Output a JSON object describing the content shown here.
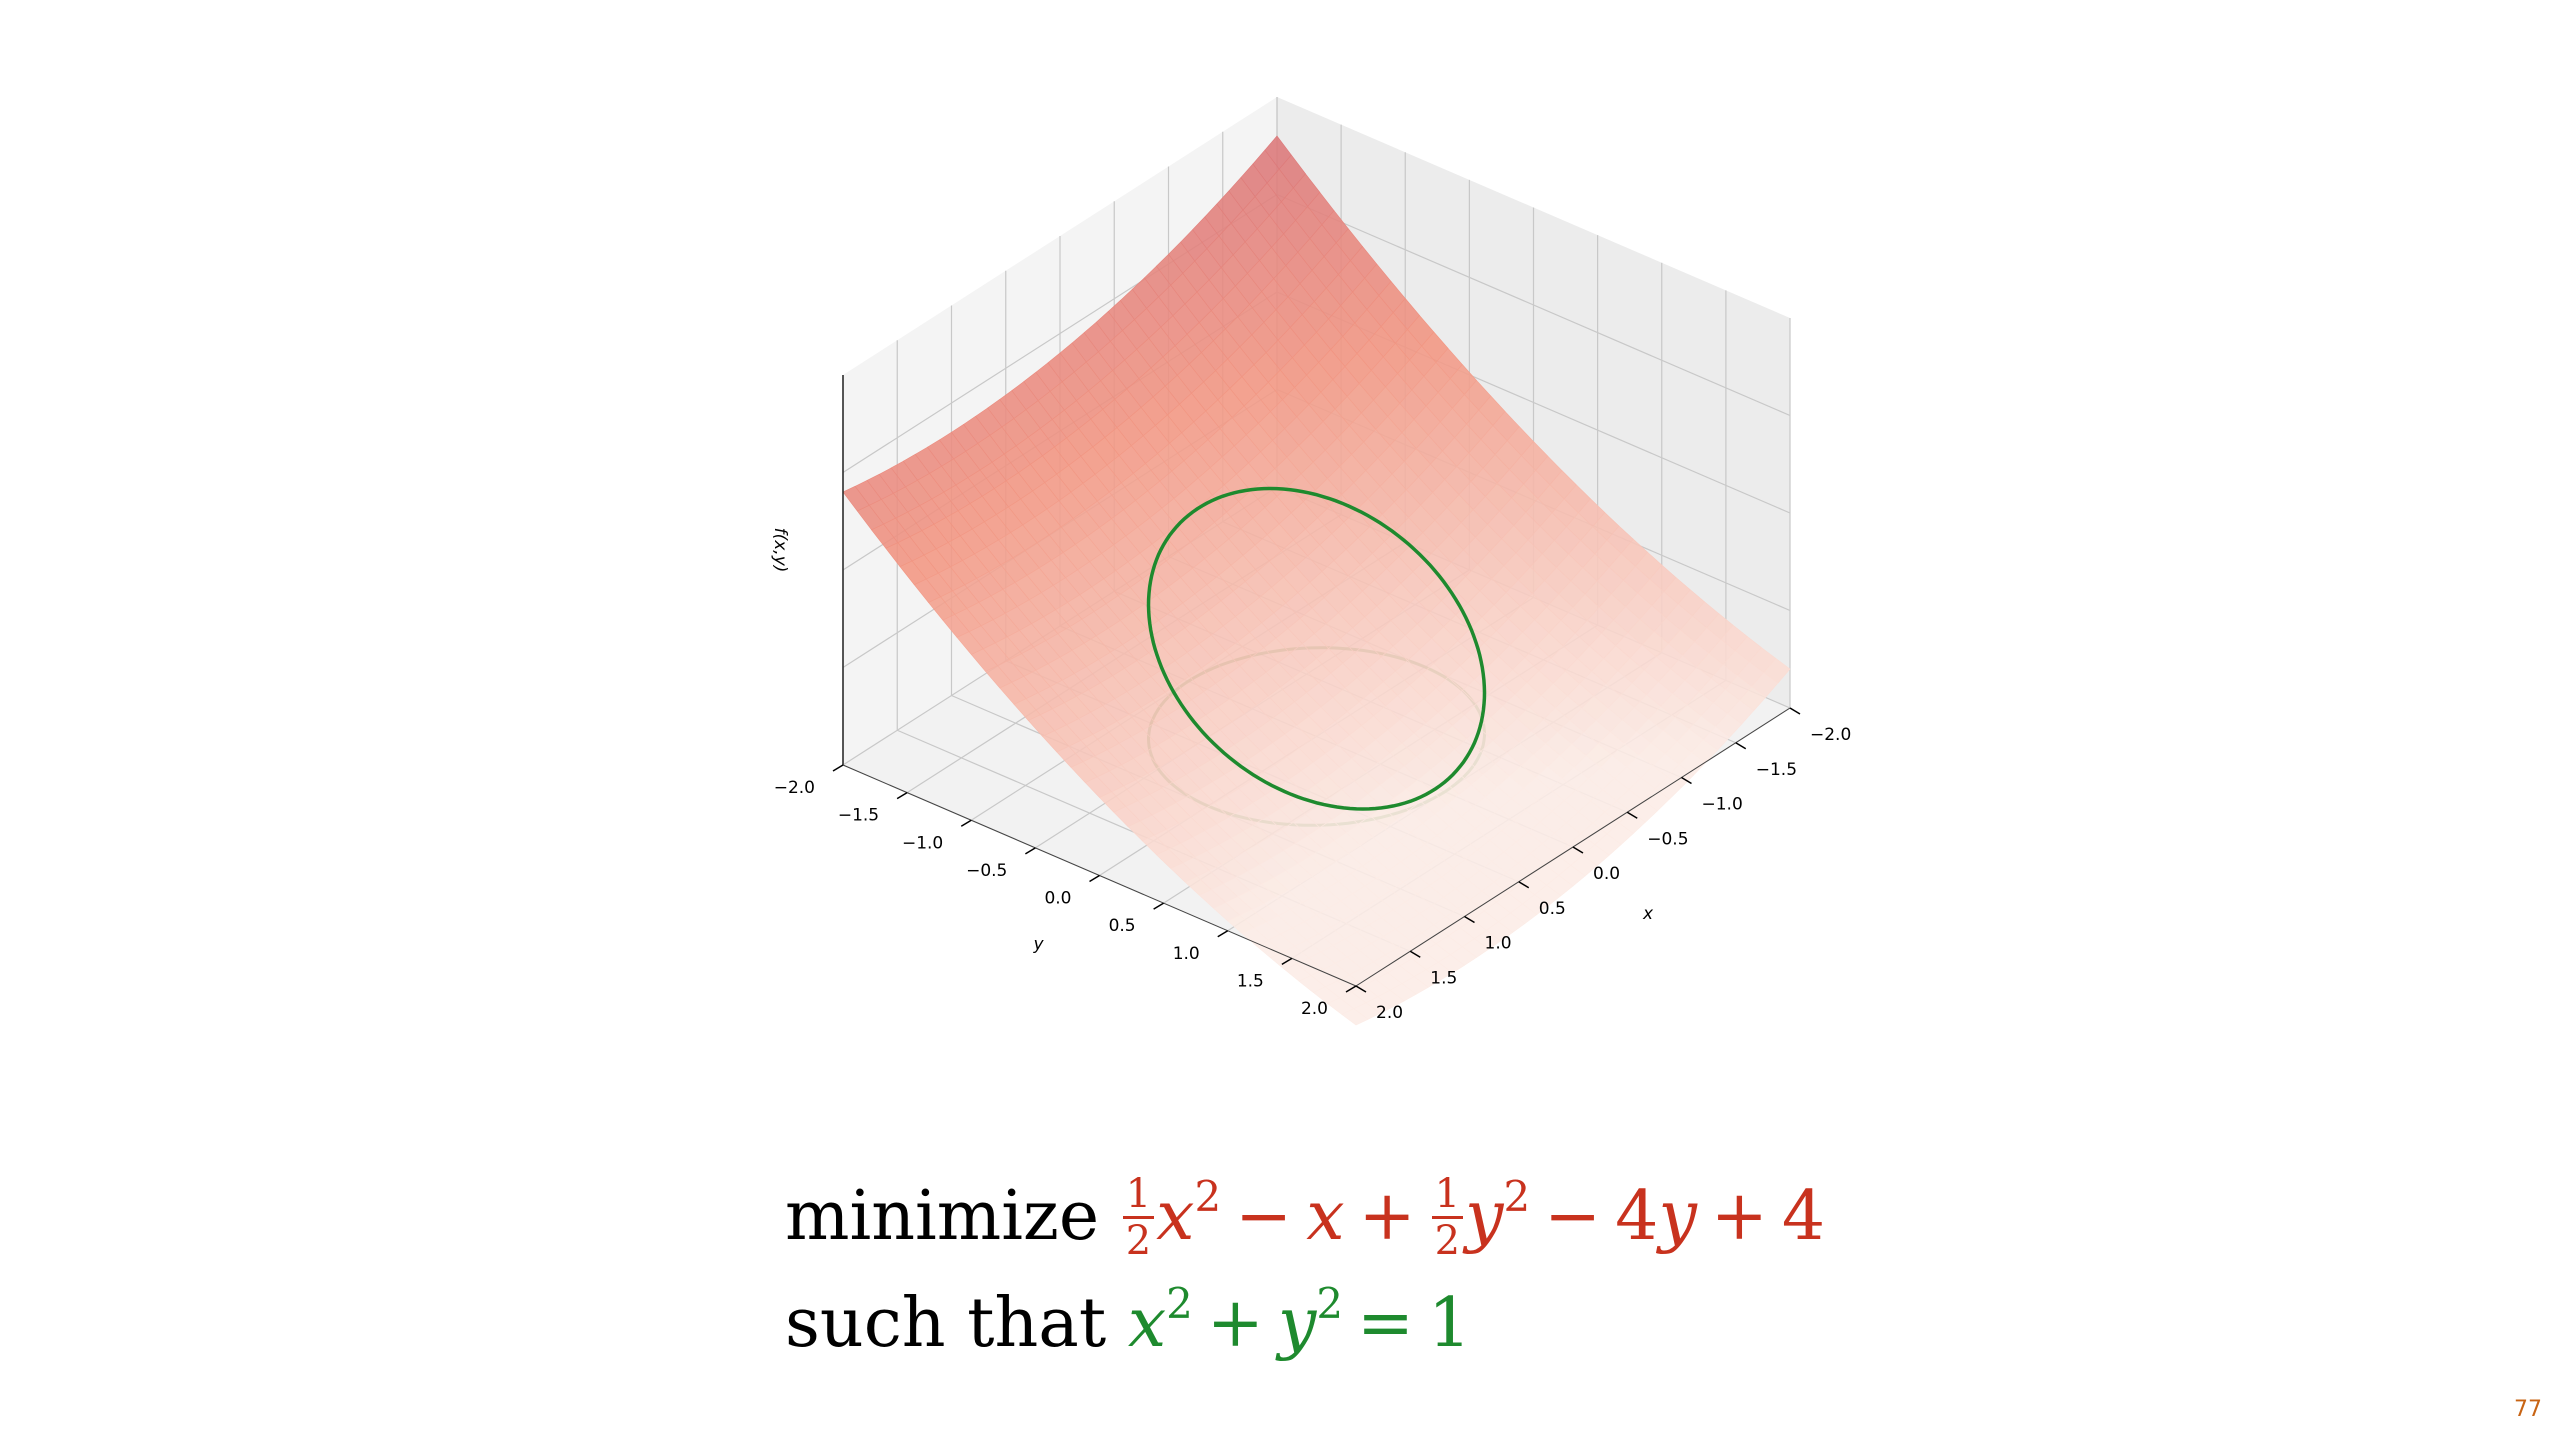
{
  "chart_data": {
    "type": "surface3d",
    "surface": "0.5*x^2 - x + 0.5*y^2 - 4*y + 4",
    "constraint": "x^2 + y^2 = 1",
    "x_range": [
      -2,
      2
    ],
    "y_range": [
      -2,
      2
    ],
    "xlabel": "x",
    "ylabel": "y",
    "zlabel": "f(x,y)",
    "x_ticks": [
      "−2.0",
      "−1.5",
      "−1.0",
      "−0.5",
      "0.0",
      "0.5",
      "1.0",
      "1.5",
      "2.0"
    ],
    "y_ticks": [
      "−2.0",
      "−1.5",
      "−1.0",
      "−0.5",
      "0.0",
      "0.5",
      "1.0",
      "1.5",
      "2.0"
    ],
    "x_tick_values": [
      -2,
      -1.5,
      -1,
      -0.5,
      0,
      0.5,
      1,
      1.5,
      2
    ],
    "y_tick_values": [
      -2,
      -1.5,
      -1,
      -0.5,
      0,
      0.5,
      1,
      1.5,
      2
    ],
    "z_ticks_visible": false,
    "grid": true,
    "surface_colormap": "Reds",
    "curve_color": "#1e8a2e",
    "floor_curve_color": "#5a9a50"
  },
  "formula": {
    "line1_label": "minimize",
    "line2_label": "such that",
    "half": "1",
    "two": "2",
    "x": "x",
    "y": "y",
    "minus": "−",
    "plus": "+",
    "equals": "=",
    "const4": "4",
    "coef4": "4",
    "one": "1",
    "exp2": "2"
  },
  "page_number": "77",
  "colors": {
    "objective": "#c8321e",
    "constraint": "#1e8a2e",
    "page_number": "#c86414"
  }
}
